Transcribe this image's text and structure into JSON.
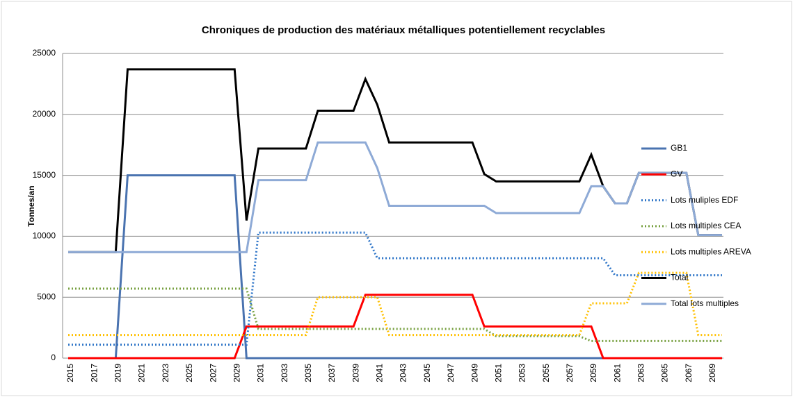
{
  "chart_data": {
    "type": "line",
    "title": "Chroniques de production des matériaux métalliques potentiellement recyclables",
    "y_label": "Tonnes/an",
    "categories": [
      "2015",
      null,
      "2017",
      null,
      "2019",
      null,
      "2021",
      null,
      "2023",
      null,
      "2025",
      null,
      "2027",
      null,
      "2029",
      null,
      "2031",
      null,
      "2033",
      null,
      "2035",
      null,
      "2037",
      null,
      "2039",
      null,
      "2041",
      null,
      "2043",
      null,
      "2045",
      null,
      "2047",
      null,
      "2049",
      null,
      "2051",
      null,
      "2053",
      null,
      "2055",
      null,
      "2057",
      null,
      "2059",
      null,
      "2061",
      null,
      "2063",
      null,
      "2065",
      null,
      "2067",
      null,
      "2069",
      null
    ],
    "ylim": [
      0,
      25000
    ],
    "yticks": [
      0,
      5000,
      10000,
      15000,
      20000,
      25000
    ],
    "grid": true,
    "legend": "right",
    "series": [
      {
        "name": "GB1",
        "color": "#4a73b0",
        "style": "solid",
        "values": [
          0,
          0,
          0,
          0,
          0,
          15000,
          15000,
          15000,
          15000,
          15000,
          15000,
          15000,
          15000,
          15000,
          15000,
          0,
          0,
          0,
          0,
          0,
          0,
          0,
          0,
          0,
          0,
          0,
          0,
          0,
          0,
          0,
          0,
          0,
          0,
          0,
          0,
          0,
          0,
          0,
          0,
          0,
          0,
          0,
          0,
          0,
          0,
          0,
          0,
          0,
          0,
          0,
          0,
          0,
          0,
          0,
          0,
          0
        ]
      },
      {
        "name": "GV",
        "color": "#ff0000",
        "style": "solid",
        "values": [
          0,
          0,
          0,
          0,
          0,
          0,
          0,
          0,
          0,
          0,
          0,
          0,
          0,
          0,
          0,
          2600,
          2600,
          2600,
          2600,
          2600,
          2600,
          2600,
          2600,
          2600,
          2600,
          5200,
          5200,
          5200,
          5200,
          5200,
          5200,
          5200,
          5200,
          5200,
          5200,
          2600,
          2600,
          2600,
          2600,
          2600,
          2600,
          2600,
          2600,
          2600,
          2600,
          0,
          0,
          0,
          0,
          0,
          0,
          0,
          0,
          0,
          0,
          0
        ]
      },
      {
        "name": "Lots muliples EDF",
        "color": "#2e75c8",
        "style": "dotted",
        "values": [
          1100,
          1100,
          1100,
          1100,
          1100,
          1100,
          1100,
          1100,
          1100,
          1100,
          1100,
          1100,
          1100,
          1100,
          1100,
          1100,
          10300,
          10300,
          10300,
          10300,
          10300,
          10300,
          10300,
          10300,
          10300,
          10300,
          8200,
          8200,
          8200,
          8200,
          8200,
          8200,
          8200,
          8200,
          8200,
          8200,
          8200,
          8200,
          8200,
          8200,
          8200,
          8200,
          8200,
          8200,
          8200,
          8200,
          6800,
          6800,
          6800,
          6800,
          6800,
          6800,
          6800,
          6800,
          6800,
          6800
        ]
      },
      {
        "name": "Lots multiples CEA",
        "color": "#77a040",
        "style": "dotted",
        "values": [
          5700,
          5700,
          5700,
          5700,
          5700,
          5700,
          5700,
          5700,
          5700,
          5700,
          5700,
          5700,
          5700,
          5700,
          5700,
          5700,
          2400,
          2400,
          2400,
          2400,
          2400,
          2400,
          2400,
          2400,
          2400,
          2400,
          2400,
          2400,
          2400,
          2400,
          2400,
          2400,
          2400,
          2400,
          2400,
          2400,
          1800,
          1800,
          1800,
          1800,
          1800,
          1800,
          1800,
          1800,
          1400,
          1400,
          1400,
          1400,
          1400,
          1400,
          1400,
          1400,
          1400,
          1400,
          1400,
          1400
        ]
      },
      {
        "name": "Lots multiples AREVA",
        "color": "#ffc000",
        "style": "dotted",
        "values": [
          1900,
          1900,
          1900,
          1900,
          1900,
          1900,
          1900,
          1900,
          1900,
          1900,
          1900,
          1900,
          1900,
          1900,
          1900,
          1900,
          1900,
          1900,
          1900,
          1900,
          1900,
          5000,
          5000,
          5000,
          5000,
          5000,
          5000,
          1900,
          1900,
          1900,
          1900,
          1900,
          1900,
          1900,
          1900,
          1900,
          1900,
          1900,
          1900,
          1900,
          1900,
          1900,
          1900,
          1900,
          4500,
          4500,
          4500,
          4500,
          7000,
          7000,
          7000,
          7000,
          7000,
          1900,
          1900,
          1900
        ]
      },
      {
        "name": "Total",
        "color": "#000000",
        "style": "solid",
        "values": [
          8700,
          8700,
          8700,
          8700,
          8700,
          23700,
          23700,
          23700,
          23700,
          23700,
          23700,
          23700,
          23700,
          23700,
          23700,
          11300,
          17200,
          17200,
          17200,
          17200,
          17200,
          20300,
          20300,
          20300,
          20300,
          22900,
          20800,
          17700,
          17700,
          17700,
          17700,
          17700,
          17700,
          17700,
          17700,
          15100,
          14500,
          14500,
          14500,
          14500,
          14500,
          14500,
          14500,
          14500,
          16700,
          14100,
          12700,
          12700,
          15200,
          15200,
          15200,
          15200,
          15200,
          10100,
          10100,
          10100
        ]
      },
      {
        "name": "Total lots multiples",
        "color": "#8eaad6",
        "style": "solid",
        "values": [
          8700,
          8700,
          8700,
          8700,
          8700,
          8700,
          8700,
          8700,
          8700,
          8700,
          8700,
          8700,
          8700,
          8700,
          8700,
          8700,
          14600,
          14600,
          14600,
          14600,
          14600,
          17700,
          17700,
          17700,
          17700,
          17700,
          15600,
          12500,
          12500,
          12500,
          12500,
          12500,
          12500,
          12500,
          12500,
          12500,
          11900,
          11900,
          11900,
          11900,
          11900,
          11900,
          11900,
          11900,
          14100,
          14100,
          12700,
          12700,
          15200,
          15200,
          15200,
          15200,
          15200,
          10100,
          10100,
          10100
        ]
      }
    ]
  }
}
